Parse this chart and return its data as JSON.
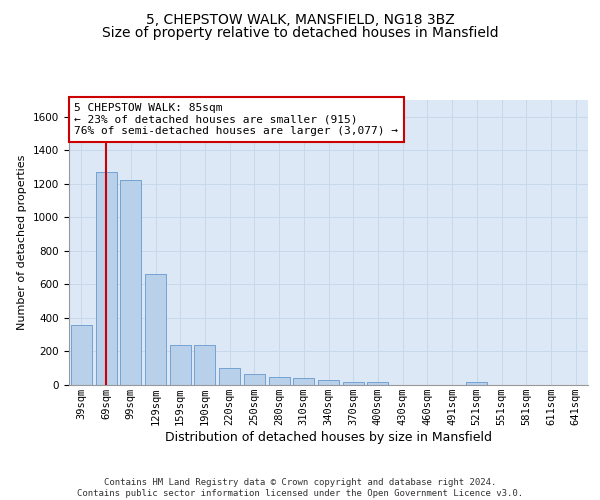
{
  "title1": "5, CHEPSTOW WALK, MANSFIELD, NG18 3BZ",
  "title2": "Size of property relative to detached houses in Mansfield",
  "xlabel": "Distribution of detached houses by size in Mansfield",
  "ylabel": "Number of detached properties",
  "footer": "Contains HM Land Registry data © Crown copyright and database right 2024.\nContains public sector information licensed under the Open Government Licence v3.0.",
  "bar_labels": [
    "39sqm",
    "69sqm",
    "99sqm",
    "129sqm",
    "159sqm",
    "190sqm",
    "220sqm",
    "250sqm",
    "280sqm",
    "310sqm",
    "340sqm",
    "370sqm",
    "400sqm",
    "430sqm",
    "460sqm",
    "491sqm",
    "521sqm",
    "551sqm",
    "581sqm",
    "611sqm",
    "641sqm"
  ],
  "bar_values": [
    360,
    1270,
    1220,
    660,
    240,
    240,
    100,
    65,
    50,
    40,
    30,
    20,
    18,
    0,
    0,
    0,
    18,
    0,
    0,
    0,
    0
  ],
  "bar_color": "#b8d0ea",
  "bar_edge_color": "#6699cc",
  "annotation_text": "5 CHEPSTOW WALK: 85sqm\n← 23% of detached houses are smaller (915)\n76% of semi-detached houses are larger (3,077) →",
  "vline_x": 1.0,
  "vline_color": "#cc0000",
  "annotation_box_facecolor": "#ffffff",
  "annotation_box_edgecolor": "#cc0000",
  "ylim": [
    0,
    1700
  ],
  "yticks": [
    0,
    200,
    400,
    600,
    800,
    1000,
    1200,
    1400,
    1600
  ],
  "grid_color": "#c8d8eb",
  "background_color": "#dce8f5",
  "title1_fontsize": 10,
  "title2_fontsize": 10,
  "xlabel_fontsize": 9,
  "ylabel_fontsize": 8,
  "tick_fontsize": 7.5,
  "annotation_fontsize": 8,
  "footer_fontsize": 6.5
}
